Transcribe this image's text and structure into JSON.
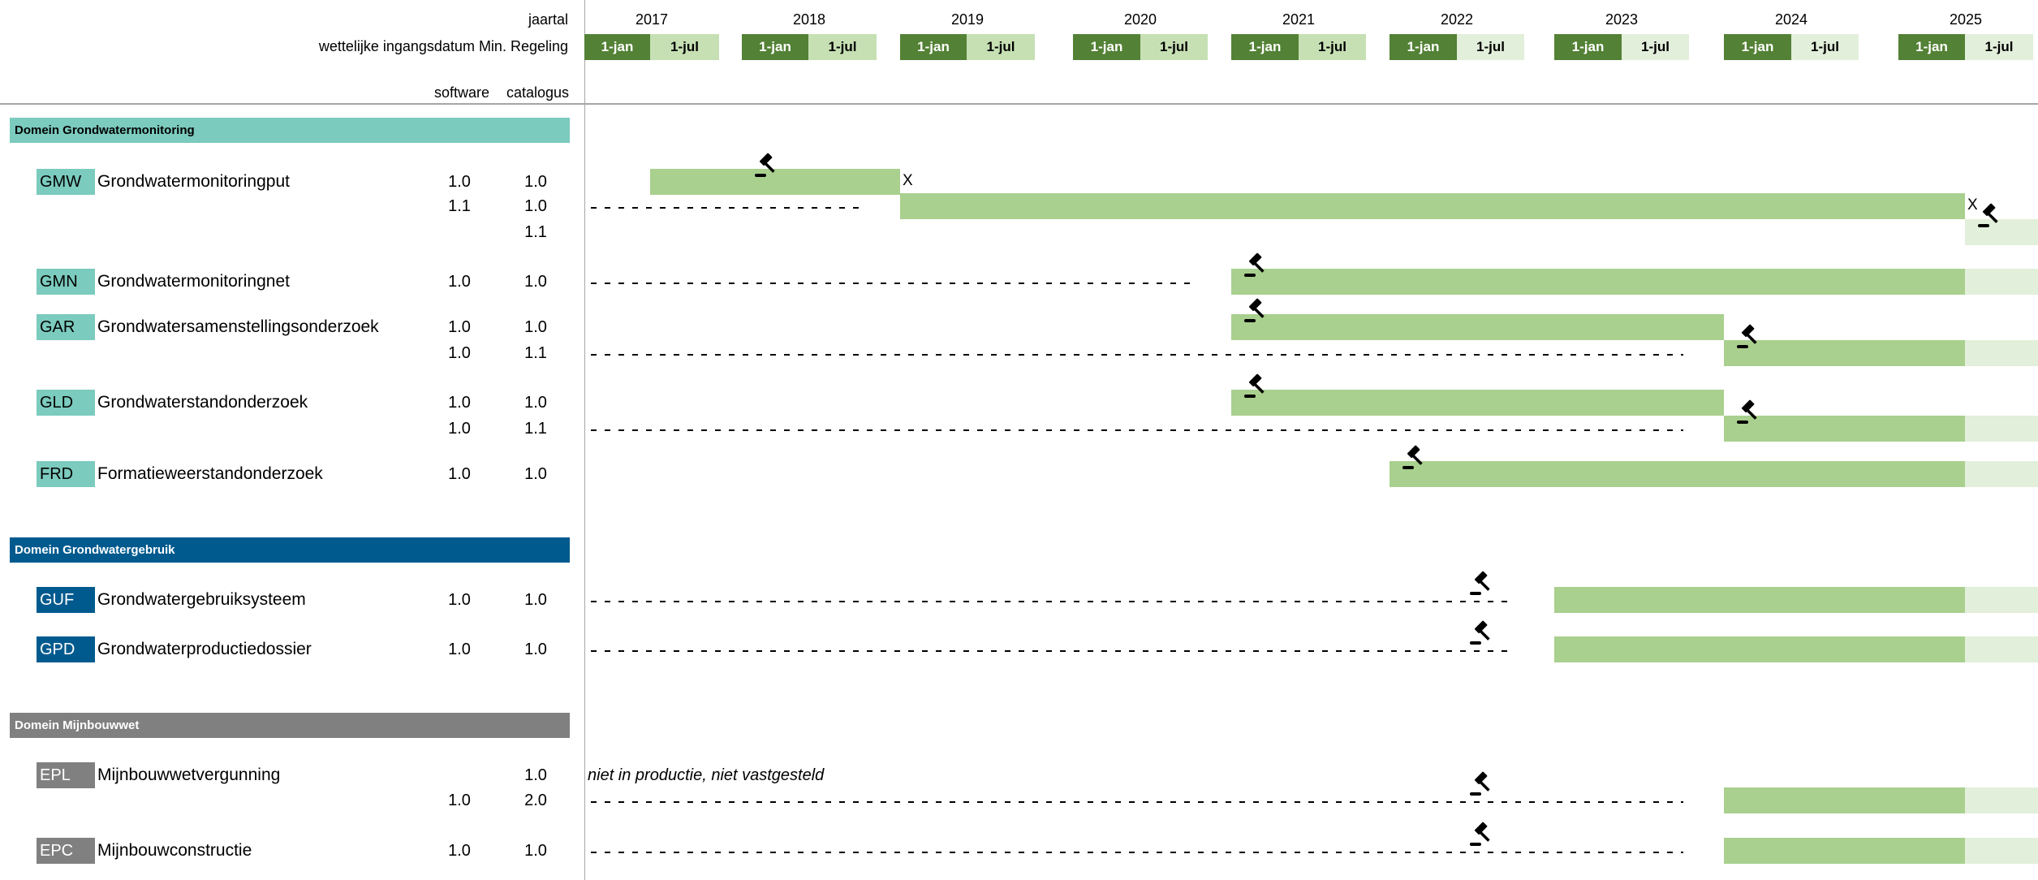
{
  "header": {
    "year_label": "jaartal",
    "date_label": "wettelijke ingangsdatum Min. Regeling",
    "software_label": "software",
    "catalogus_label": "catalogus",
    "jan_label": "1-jan",
    "jul_label": "1-jul",
    "years": [
      "2017",
      "2018",
      "2019",
      "2020",
      "2021",
      "2022",
      "2023",
      "2024",
      "2025"
    ],
    "past_jul_years": [
      "2017",
      "2018",
      "2019",
      "2020",
      "2021"
    ]
  },
  "colors": {
    "jan_cell": "#538135",
    "jul_cell_past": "#C6E0B4",
    "jul_cell_future": "#E2EFDA",
    "bar": "#A9D08E",
    "bar_future": "#E2EFDA",
    "domain_grondwatermonitoring": "#7BCBBE",
    "domain_grondwatergebruik": "#005A8E",
    "domain_mijnbouwwet": "#808080"
  },
  "icons": {
    "gavel": "gavel-icon",
    "end_marker": "X"
  },
  "domains": [
    {
      "title": "Domein Grondwatermonitoring",
      "color": "#7BCBBE",
      "text_color": "#000000",
      "rows": [
        {
          "code": "GMW",
          "name": "Grondwatermonitoringput",
          "software": "1.0",
          "catalogus": "1.0",
          "bars": [
            {
              "from": "2017-07",
              "to": "2019-01"
            }
          ],
          "gavel": "2018-01",
          "end_marker": "X"
        },
        {
          "software": "1.1",
          "catalogus": "1.0",
          "dashes_until": "2019-01",
          "bars": [
            {
              "from": "2019-01",
              "to": "2025-07"
            }
          ],
          "end_marker": "X"
        },
        {
          "catalogus": "1.1",
          "bars": [
            {
              "from": "2025-07",
              "to": "end",
              "future": true
            }
          ],
          "gavel": "2025-07"
        },
        {
          "code": "GMN",
          "name": "Grondwatermonitoringnet",
          "software": "1.0",
          "catalogus": "1.0",
          "dashes_until": "2021-01",
          "bars": [
            {
              "from": "2021-01",
              "to": "2025-07"
            },
            {
              "from": "2025-07",
              "to": "end",
              "future": true
            }
          ],
          "gavel": "2021-01"
        },
        {
          "code": "GAR",
          "name": "Grondwatersamenstellingsonderzoek",
          "software": "1.0",
          "catalogus": "1.0",
          "bars": [
            {
              "from": "2021-01",
              "to": "2024-01"
            }
          ],
          "gavel": "2021-01"
        },
        {
          "software": "1.0",
          "catalogus": "1.1",
          "dashes_until": "2024-01",
          "bars": [
            {
              "from": "2024-01",
              "to": "2025-07"
            },
            {
              "from": "2025-07",
              "to": "end",
              "future": true
            }
          ],
          "gavel": "2024-01"
        },
        {
          "code": "GLD",
          "name": "Grondwaterstandonderzoek",
          "software": "1.0",
          "catalogus": "1.0",
          "bars": [
            {
              "from": "2021-01",
              "to": "2024-01"
            }
          ],
          "gavel": "2021-01"
        },
        {
          "software": "1.0",
          "catalogus": "1.1",
          "dashes_until": "2024-01",
          "bars": [
            {
              "from": "2024-01",
              "to": "2025-07"
            },
            {
              "from": "2025-07",
              "to": "end",
              "future": true
            }
          ],
          "gavel": "2024-01"
        },
        {
          "code": "FRD",
          "name": "Formatieweerstandonderzoek",
          "software": "1.0",
          "catalogus": "1.0",
          "bars": [
            {
              "from": "2022-01",
              "to": "2025-07"
            },
            {
              "from": "2025-07",
              "to": "end",
              "future": true
            }
          ],
          "gavel": "2022-01"
        }
      ]
    },
    {
      "title": "Domein Grondwatergebruik",
      "color": "#005A8E",
      "text_color": "#FFFFFF",
      "rows": [
        {
          "code": "GUF",
          "name": "Grondwatergebruiksysteem",
          "software": "1.0",
          "catalogus": "1.0",
          "dashes_until": "2023-01",
          "bars": [
            {
              "from": "2023-01",
              "to": "2025-07"
            },
            {
              "from": "2025-07",
              "to": "end",
              "future": true
            }
          ],
          "gavel": "2022-07"
        },
        {
          "code": "GPD",
          "name": "Grondwaterproductiedossier",
          "software": "1.0",
          "catalogus": "1.0",
          "dashes_until": "2023-01",
          "bars": [
            {
              "from": "2023-01",
              "to": "2025-07"
            },
            {
              "from": "2025-07",
              "to": "end",
              "future": true
            }
          ],
          "gavel": "2022-07"
        }
      ]
    },
    {
      "title": "Domein Mijnbouwwet",
      "color": "#808080",
      "text_color": "#FFFFFF",
      "rows": [
        {
          "code": "EPL",
          "name": "Mijnbouwwetvergunning",
          "catalogus": "1.0",
          "note": "niet in productie, niet vastgesteld",
          "bars": []
        },
        {
          "software": "1.0",
          "catalogus": "2.0",
          "dashes_until": "2024-01",
          "bars": [
            {
              "from": "2024-01",
              "to": "2025-07"
            },
            {
              "from": "2025-07",
              "to": "end",
              "future": true
            }
          ],
          "gavel": "2022-07"
        },
        {
          "code": "EPC",
          "name": "Mijnbouwconstructie",
          "software": "1.0",
          "catalogus": "1.0",
          "dashes_until": "2024-01",
          "bars": [
            {
              "from": "2024-01",
              "to": "2025-07"
            },
            {
              "from": "2025-07",
              "to": "end",
              "future": true
            }
          ],
          "gavel": "2022-07"
        }
      ]
    }
  ]
}
